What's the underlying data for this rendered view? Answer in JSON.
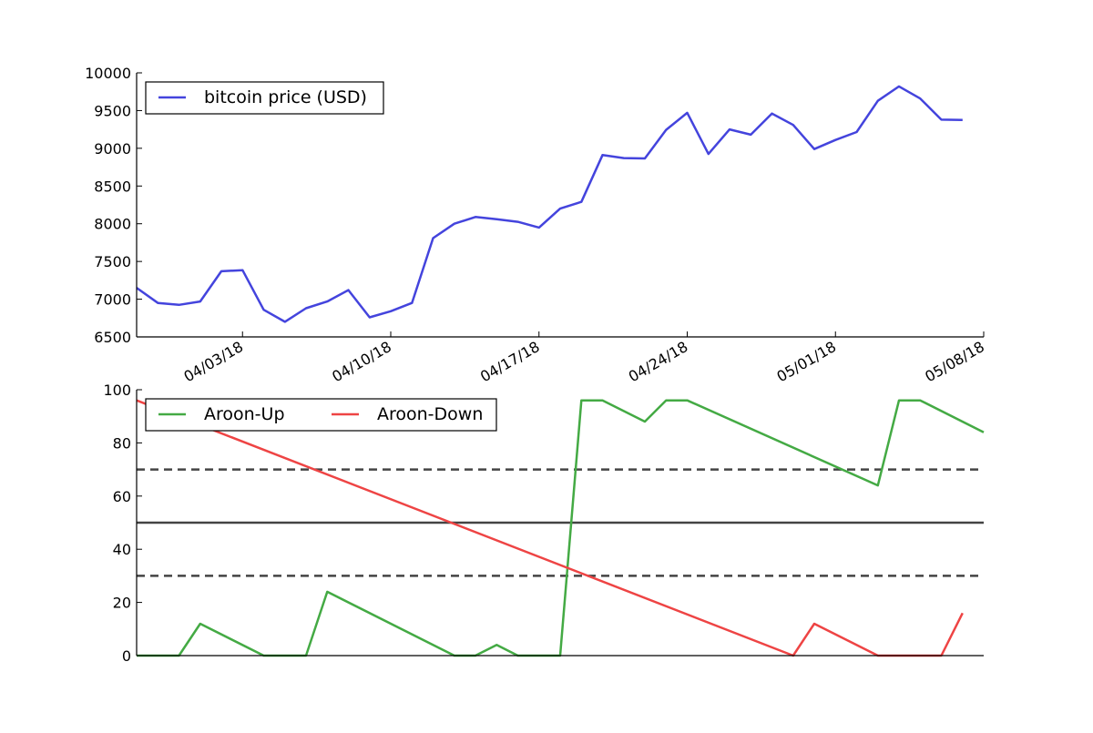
{
  "chart_data": [
    {
      "type": "line",
      "title": "",
      "xlabel": "",
      "ylabel": "",
      "ylim": [
        6500,
        10000
      ],
      "yticks": [
        "6500",
        "7000",
        "7500",
        "8000",
        "8500",
        "9000",
        "9500",
        "10000"
      ],
      "xticks": [
        "04/03/18",
        "04/10/18",
        "04/17/18",
        "04/24/18",
        "05/01/18",
        "05/08/18"
      ],
      "xrange": [
        "03/29/18",
        "05/08/18"
      ],
      "grid": false,
      "legend": "top-left",
      "series": [
        {
          "name": "bitcoin price (USD)",
          "color": "#4444dd",
          "points": [
            [
              "03/29/18",
              7150
            ],
            [
              "03/30/18",
              6950
            ],
            [
              "03/31/18",
              6925
            ],
            [
              "04/01/18",
              6970
            ],
            [
              "04/02/18",
              7370
            ],
            [
              "04/03/18",
              7385
            ],
            [
              "04/04/18",
              6860
            ],
            [
              "04/05/18",
              6700
            ],
            [
              "04/06/18",
              6880
            ],
            [
              "04/07/18",
              6970
            ],
            [
              "04/08/18",
              7120
            ],
            [
              "04/09/18",
              6760
            ],
            [
              "04/10/18",
              6840
            ],
            [
              "04/11/18",
              6950
            ],
            [
              "04/12/18",
              7810
            ],
            [
              "04/13/18",
              8000
            ],
            [
              "04/14/18",
              8090
            ],
            [
              "04/15/18",
              8060
            ],
            [
              "04/16/18",
              8025
            ],
            [
              "04/17/18",
              7950
            ],
            [
              "04/18/18",
              8200
            ],
            [
              "04/19/18",
              8290
            ],
            [
              "04/20/18",
              8910
            ],
            [
              "04/21/18",
              8870
            ],
            [
              "04/22/18",
              8865
            ],
            [
              "04/23/18",
              9245
            ],
            [
              "04/24/18",
              9470
            ],
            [
              "04/25/18",
              8925
            ],
            [
              "04/26/18",
              9250
            ],
            [
              "04/27/18",
              9180
            ],
            [
              "04/28/18",
              9460
            ],
            [
              "04/29/18",
              9310
            ],
            [
              "04/30/18",
              8990
            ],
            [
              "05/01/18",
              9110
            ],
            [
              "05/02/18",
              9215
            ],
            [
              "05/03/18",
              9630
            ],
            [
              "05/04/18",
              9820
            ],
            [
              "05/05/18",
              9660
            ],
            [
              "05/06/18",
              9380
            ],
            [
              "05/07/18",
              9375
            ]
          ]
        }
      ]
    },
    {
      "type": "line",
      "title": "",
      "xlabel": "",
      "ylabel": "",
      "ylim": [
        0,
        100
      ],
      "yticks": [
        "0",
        "20",
        "40",
        "60",
        "80",
        "100"
      ],
      "xrange": [
        "03/29/18",
        "05/08/18"
      ],
      "grid": false,
      "legend": "top-left",
      "reference_lines": [
        {
          "y": 70,
          "style": "dashed",
          "color": "#444444"
        },
        {
          "y": 50,
          "style": "solid",
          "color": "#444444"
        },
        {
          "y": 30,
          "style": "dashed",
          "color": "#444444"
        }
      ],
      "series": [
        {
          "name": "Aroon-Up",
          "color": "#44aa44",
          "points": [
            [
              "03/29/18",
              0
            ],
            [
              "03/31/18",
              0
            ],
            [
              "04/01/18",
              12
            ],
            [
              "04/04/18",
              0
            ],
            [
              "04/06/18",
              0
            ],
            [
              "04/07/18",
              24
            ],
            [
              "04/13/18",
              0
            ],
            [
              "04/14/18",
              0
            ],
            [
              "04/15/18",
              4
            ],
            [
              "04/16/18",
              0
            ],
            [
              "04/18/18",
              0
            ],
            [
              "04/19/18",
              96
            ],
            [
              "04/20/18",
              96
            ],
            [
              "04/22/18",
              88
            ],
            [
              "04/23/18",
              96
            ],
            [
              "04/24/18",
              96
            ],
            [
              "05/03/18",
              64
            ],
            [
              "05/04/18",
              96
            ],
            [
              "05/05/18",
              96
            ],
            [
              "05/08/18",
              84
            ]
          ]
        },
        {
          "name": "Aroon-Down",
          "color": "#ee4444",
          "points": [
            [
              "03/29/18",
              96
            ],
            [
              "04/29/18",
              0
            ],
            [
              "04/30/18",
              12
            ],
            [
              "05/03/18",
              0
            ],
            [
              "05/06/18",
              0
            ],
            [
              "05/07/18",
              16
            ]
          ]
        }
      ]
    }
  ]
}
